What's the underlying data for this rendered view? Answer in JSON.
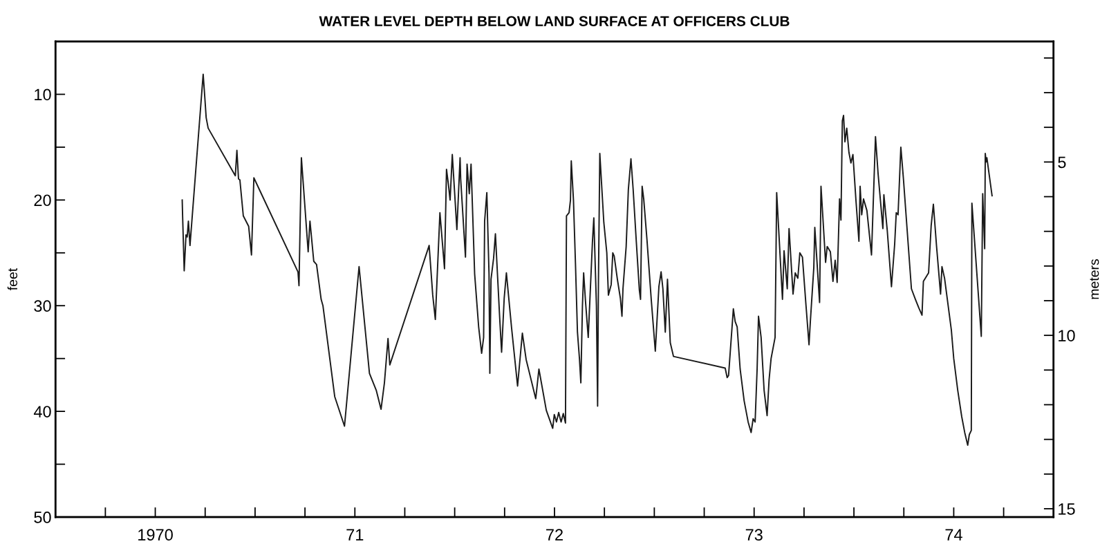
{
  "chart_data": {
    "type": "line",
    "title": "WATER LEVEL DEPTH BELOW LAND SURFACE AT OFFICERS CLUB",
    "ylabel": "feet",
    "y2label": "meters",
    "xlim": [
      1969.5,
      1974.5
    ],
    "xticks": [
      {
        "value": 1969.75,
        "label": null
      },
      {
        "value": 1970,
        "label": "1970"
      },
      {
        "value": 1970.25,
        "label": null
      },
      {
        "value": 1970.5,
        "label": null
      },
      {
        "value": 1970.75,
        "label": null
      },
      {
        "value": 1971,
        "label": "71"
      },
      {
        "value": 1971.25,
        "label": null
      },
      {
        "value": 1971.5,
        "label": null
      },
      {
        "value": 1971.75,
        "label": null
      },
      {
        "value": 1972,
        "label": "72"
      },
      {
        "value": 1972.25,
        "label": null
      },
      {
        "value": 1972.5,
        "label": null
      },
      {
        "value": 1972.75,
        "label": null
      },
      {
        "value": 1973,
        "label": "73"
      },
      {
        "value": 1973.25,
        "label": null
      },
      {
        "value": 1973.5,
        "label": null
      },
      {
        "value": 1973.75,
        "label": null
      },
      {
        "value": 1974,
        "label": "74"
      },
      {
        "value": 1974.25,
        "label": null
      }
    ],
    "ylim": [
      50,
      5
    ],
    "yticks": [
      10,
      {
        "value": 15,
        "label": null
      },
      20,
      {
        "value": 25,
        "label": null
      },
      30,
      {
        "value": 35,
        "label": null
      },
      40,
      {
        "value": 45,
        "label": null
      },
      50
    ],
    "y2lim": [
      15.24,
      1.524
    ],
    "y2ticks": [
      {
        "value": 2,
        "label": null
      },
      {
        "value": 3,
        "label": null
      },
      {
        "value": 4,
        "label": null
      },
      5,
      {
        "value": 6,
        "label": null
      },
      {
        "value": 7,
        "label": null
      },
      {
        "value": 8,
        "label": null
      },
      {
        "value": 9,
        "label": null
      },
      10,
      {
        "value": 11,
        "label": null
      },
      {
        "value": 12,
        "label": null
      },
      {
        "value": 13,
        "label": null
      },
      {
        "value": 14,
        "label": null
      },
      15
    ],
    "line_style": "solid",
    "series": [
      {
        "color": "#1a1a1a",
        "x": [
          1970.135,
          1970.137,
          1970.145,
          1970.154,
          1970.16,
          1970.166,
          1970.174,
          1970.24,
          1970.249,
          1970.255,
          1970.265,
          1970.401,
          1970.409,
          1970.417,
          1970.424,
          1970.441,
          1970.468,
          1970.482,
          1970.494,
          1970.715,
          1970.72,
          1970.732,
          1970.766,
          1970.775,
          1970.794,
          1970.808,
          1970.831,
          1970.84,
          1970.899,
          1970.948,
          1971.021,
          1971.073,
          1971.107,
          1971.131,
          1971.148,
          1971.166,
          1971.175,
          1971.372,
          1971.39,
          1971.403,
          1971.426,
          1971.449,
          1971.459,
          1971.469,
          1971.477,
          1971.488,
          1971.511,
          1971.527,
          1971.53,
          1971.554,
          1971.562,
          1971.573,
          1971.582,
          1971.6,
          1971.62,
          1971.635,
          1971.645,
          1971.65,
          1971.661,
          1971.672,
          1971.676,
          1971.682,
          1971.695,
          1971.704,
          1971.725,
          1971.735,
          1971.748,
          1971.759,
          1971.785,
          1971.815,
          1971.839,
          1971.858,
          1971.906,
          1971.922,
          1971.959,
          1971.991,
          1971.999,
          1972.01,
          1972.021,
          1972.033,
          1972.044,
          1972.055,
          1972.06,
          1972.073,
          1972.08,
          1972.084,
          1972.095,
          1972.105,
          1972.115,
          1972.125,
          1972.132,
          1972.14,
          1972.146,
          1972.155,
          1972.169,
          1972.19,
          1972.197,
          1972.21,
          1972.216,
          1972.22,
          1972.227,
          1972.247,
          1972.262,
          1972.27,
          1972.284,
          1972.292,
          1972.299,
          1972.315,
          1972.33,
          1972.338,
          1972.343,
          1972.359,
          1972.37,
          1972.383,
          1972.394,
          1972.41,
          1972.425,
          1972.431,
          1972.439,
          1972.447,
          1972.463,
          1972.485,
          1972.505,
          1972.523,
          1972.534,
          1972.543,
          1972.555,
          1972.566,
          1972.58,
          1972.596,
          1972.855,
          1972.865,
          1972.872,
          1972.896,
          1972.905,
          1972.915,
          1972.93,
          1972.95,
          1972.97,
          1972.985,
          1972.995,
          1973.005,
          1973.015,
          1973.022,
          1973.035,
          1973.05,
          1973.065,
          1973.075,
          1973.085,
          1973.105,
          1973.113,
          1973.142,
          1973.15,
          1973.166,
          1973.175,
          1973.195,
          1973.206,
          1973.219,
          1973.229,
          1973.242,
          1973.26,
          1973.275,
          1973.282,
          1973.299,
          1973.304,
          1973.328,
          1973.335,
          1973.358,
          1973.366,
          1973.382,
          1973.395,
          1973.406,
          1973.416,
          1973.428,
          1973.435,
          1973.442,
          1973.448,
          1973.455,
          1973.464,
          1973.475,
          1973.485,
          1973.495,
          1973.51,
          1973.525,
          1973.531,
          1973.539,
          1973.548,
          1973.565,
          1973.588,
          1973.608,
          1973.621,
          1973.645,
          1973.65,
          1973.667,
          1973.688,
          1973.704,
          1973.712,
          1973.721,
          1973.735,
          1973.748,
          1973.788,
          1973.808,
          1973.825,
          1973.841,
          1973.848,
          1973.874,
          1973.887,
          1973.898,
          1973.914,
          1973.934,
          1973.941,
          1973.954,
          1973.988,
          1974.0,
          1974.02,
          1974.04,
          1974.055,
          1974.07,
          1974.078,
          1974.088,
          1974.091,
          1974.138,
          1974.145,
          1974.155,
          1974.158,
          1974.162,
          1974.166,
          1974.192
        ],
        "values": [
          20.0,
          21.5,
          26.7,
          23.3,
          23.5,
          22.0,
          24.3,
          8.1,
          10.5,
          12.2,
          13.2,
          17.7,
          15.3,
          18.0,
          18.1,
          21.5,
          22.5,
          25.2,
          17.9,
          26.8,
          28.1,
          16.0,
          24.9,
          22.0,
          25.8,
          26.1,
          29.4,
          30.0,
          38.6,
          41.4,
          26.3,
          36.4,
          38.0,
          39.8,
          37.3,
          33.1,
          35.6,
          24.3,
          29.0,
          31.3,
          21.2,
          26.5,
          17.1,
          18.6,
          20.0,
          15.7,
          22.8,
          16.0,
          18.0,
          25.4,
          16.6,
          19.4,
          16.6,
          27.0,
          32.0,
          34.5,
          33.0,
          22.0,
          19.3,
          27.0,
          36.4,
          27.5,
          25.5,
          23.2,
          31.0,
          34.4,
          29.3,
          26.9,
          32.1,
          37.6,
          32.6,
          35.1,
          38.8,
          36.0,
          39.9,
          41.6,
          40.3,
          41.0,
          40.1,
          41.0,
          40.2,
          41.1,
          21.5,
          21.2,
          20.0,
          16.3,
          20.0,
          26.0,
          32.5,
          35.0,
          37.3,
          30.0,
          26.9,
          29.5,
          33.0,
          24.0,
          21.7,
          30.0,
          39.5,
          28.0,
          15.6,
          22.1,
          25.0,
          29.0,
          28.0,
          25.0,
          25.3,
          27.5,
          29.3,
          31.0,
          28.4,
          24.4,
          19.0,
          16.1,
          19.0,
          24.0,
          28.5,
          29.4,
          18.7,
          19.9,
          23.7,
          29.5,
          34.3,
          28.2,
          26.8,
          28.4,
          32.5,
          27.5,
          33.5,
          34.8,
          35.9,
          36.8,
          36.6,
          30.3,
          31.5,
          32.0,
          36.0,
          39.0,
          41.0,
          42.0,
          40.7,
          41.0,
          36.0,
          31.0,
          33.0,
          38.0,
          40.4,
          37.0,
          35.0,
          33.0,
          19.3,
          29.4,
          24.8,
          28.4,
          22.7,
          28.9,
          26.9,
          27.4,
          25.0,
          25.4,
          30.0,
          33.7,
          31.4,
          26.4,
          22.6,
          29.7,
          18.7,
          25.9,
          24.4,
          24.9,
          27.7,
          25.7,
          27.8,
          19.9,
          21.9,
          12.5,
          12.0,
          14.5,
          13.2,
          15.5,
          16.5,
          15.7,
          20.0,
          23.9,
          18.7,
          21.4,
          19.9,
          21.0,
          25.2,
          14.0,
          17.5,
          22.7,
          19.5,
          22.9,
          28.2,
          24.2,
          21.2,
          21.4,
          15.0,
          18.0,
          28.4,
          29.4,
          30.2,
          30.9,
          27.7,
          26.9,
          22.4,
          20.4,
          24.4,
          28.9,
          26.3,
          27.4,
          32.3,
          35.0,
          38.0,
          40.5,
          42.0,
          43.2,
          42.2,
          41.8,
          20.3,
          32.9,
          19.4,
          24.6,
          15.6,
          16.4,
          16.0,
          19.6
        ]
      }
    ]
  }
}
